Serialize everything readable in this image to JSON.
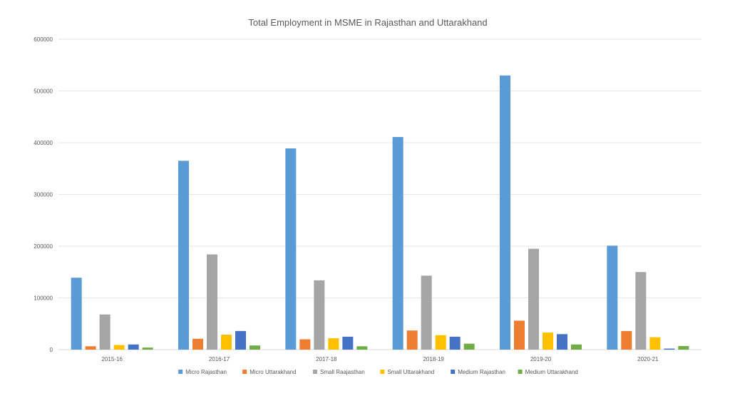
{
  "chart_data": {
    "type": "bar",
    "title": "Total Employment in MSME  in Rajasthan and Uttarakhand",
    "xlabel": "",
    "ylabel": "",
    "ylim": [
      0,
      600000
    ],
    "yticks": [
      "0",
      "100000",
      "200000",
      "300000",
      "400000",
      "500000",
      "600000"
    ],
    "grid": true,
    "legend_position": "bottom",
    "categories": [
      "2015-16",
      "2016-17",
      "2017-18",
      "2018-19",
      "2019-20",
      "2020-21"
    ],
    "series": [
      {
        "name": "Micro Rajasthan",
        "color": "#5b9bd5",
        "values": [
          139000,
          365000,
          389000,
          411000,
          530000,
          201000
        ]
      },
      {
        "name": "Micro Uttarakhand",
        "color": "#ed7d31",
        "values": [
          6500,
          21000,
          20000,
          37000,
          56000,
          36000
        ]
      },
      {
        "name": "Small Raajasthan",
        "color": "#a5a5a5",
        "values": [
          68000,
          184000,
          134000,
          143000,
          195000,
          150000
        ]
      },
      {
        "name": "Small Uttarakhand",
        "color": "#ffc000",
        "values": [
          9000,
          29000,
          22000,
          28000,
          33000,
          24000
        ]
      },
      {
        "name": "Medium Rajasthan",
        "color": "#4472c4",
        "values": [
          10000,
          36000,
          25000,
          25000,
          30000,
          2000
        ]
      },
      {
        "name": "Medium Uttarakhand",
        "color": "#70ad47",
        "values": [
          4000,
          8000,
          6500,
          11500,
          10000,
          7000
        ]
      }
    ]
  }
}
